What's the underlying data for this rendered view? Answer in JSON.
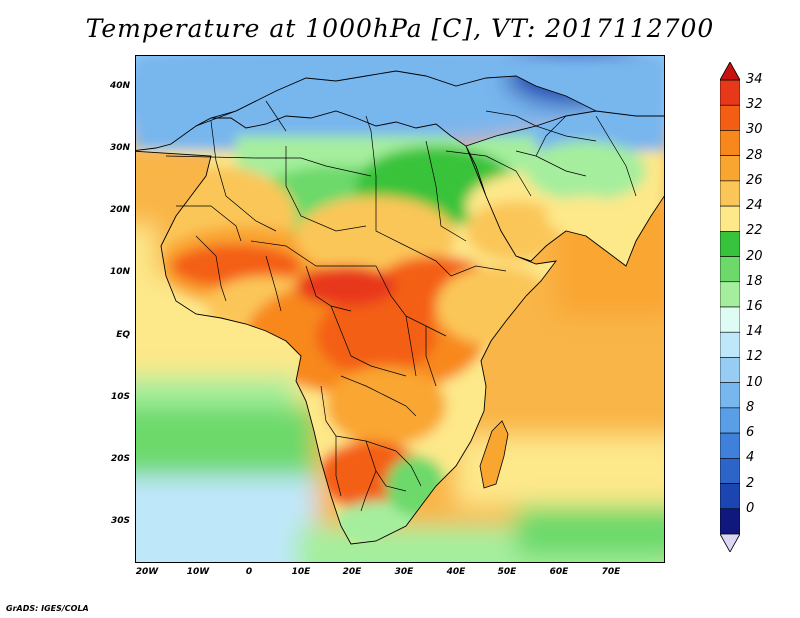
{
  "title": "Temperature at 1000hPa [C], VT: 2017112700",
  "map": {
    "region": "Africa, Arabian Peninsula and western Indian Ocean",
    "variable": "Temperature at 1000hPa",
    "units": "C",
    "valid_time": "2017112700",
    "lon_range": [
      -25,
      80
    ],
    "lat_range": [
      -37,
      45
    ],
    "lon_tick_labels": [
      "20W",
      "10W",
      "0",
      "10E",
      "20E",
      "30E",
      "40E",
      "50E",
      "60E",
      "70E"
    ],
    "lon_tick_values": [
      -20,
      -10,
      0,
      10,
      20,
      30,
      40,
      50,
      60,
      70
    ],
    "lat_tick_labels": [
      "40N",
      "30N",
      "20N",
      "10N",
      "EQ",
      "10S",
      "20S",
      "30S"
    ],
    "lat_tick_values": [
      40,
      30,
      20,
      10,
      0,
      -10,
      -20,
      -30
    ]
  },
  "colorbar": {
    "labels": [
      "34",
      "32",
      "30",
      "28",
      "26",
      "24",
      "22",
      "20",
      "18",
      "16",
      "14",
      "12",
      "10",
      "8",
      "6",
      "4",
      "2",
      "0"
    ],
    "colors": [
      "#e8381a",
      "#f45e14",
      "#f8881b",
      "#f9a631",
      "#fbc658",
      "#fde88a",
      "#37c33b",
      "#6cd96a",
      "#a5ee9d",
      "#dffcf4",
      "#bfe7fa",
      "#97cdf5",
      "#78b6ee",
      "#5a9ee7",
      "#3f81da",
      "#2d64c7",
      "#1b45b0",
      "#10187d"
    ],
    "over_color": "#c8120f",
    "under_color": "#dcd6f7"
  },
  "credit": "GrADS: IGES/COLA"
}
